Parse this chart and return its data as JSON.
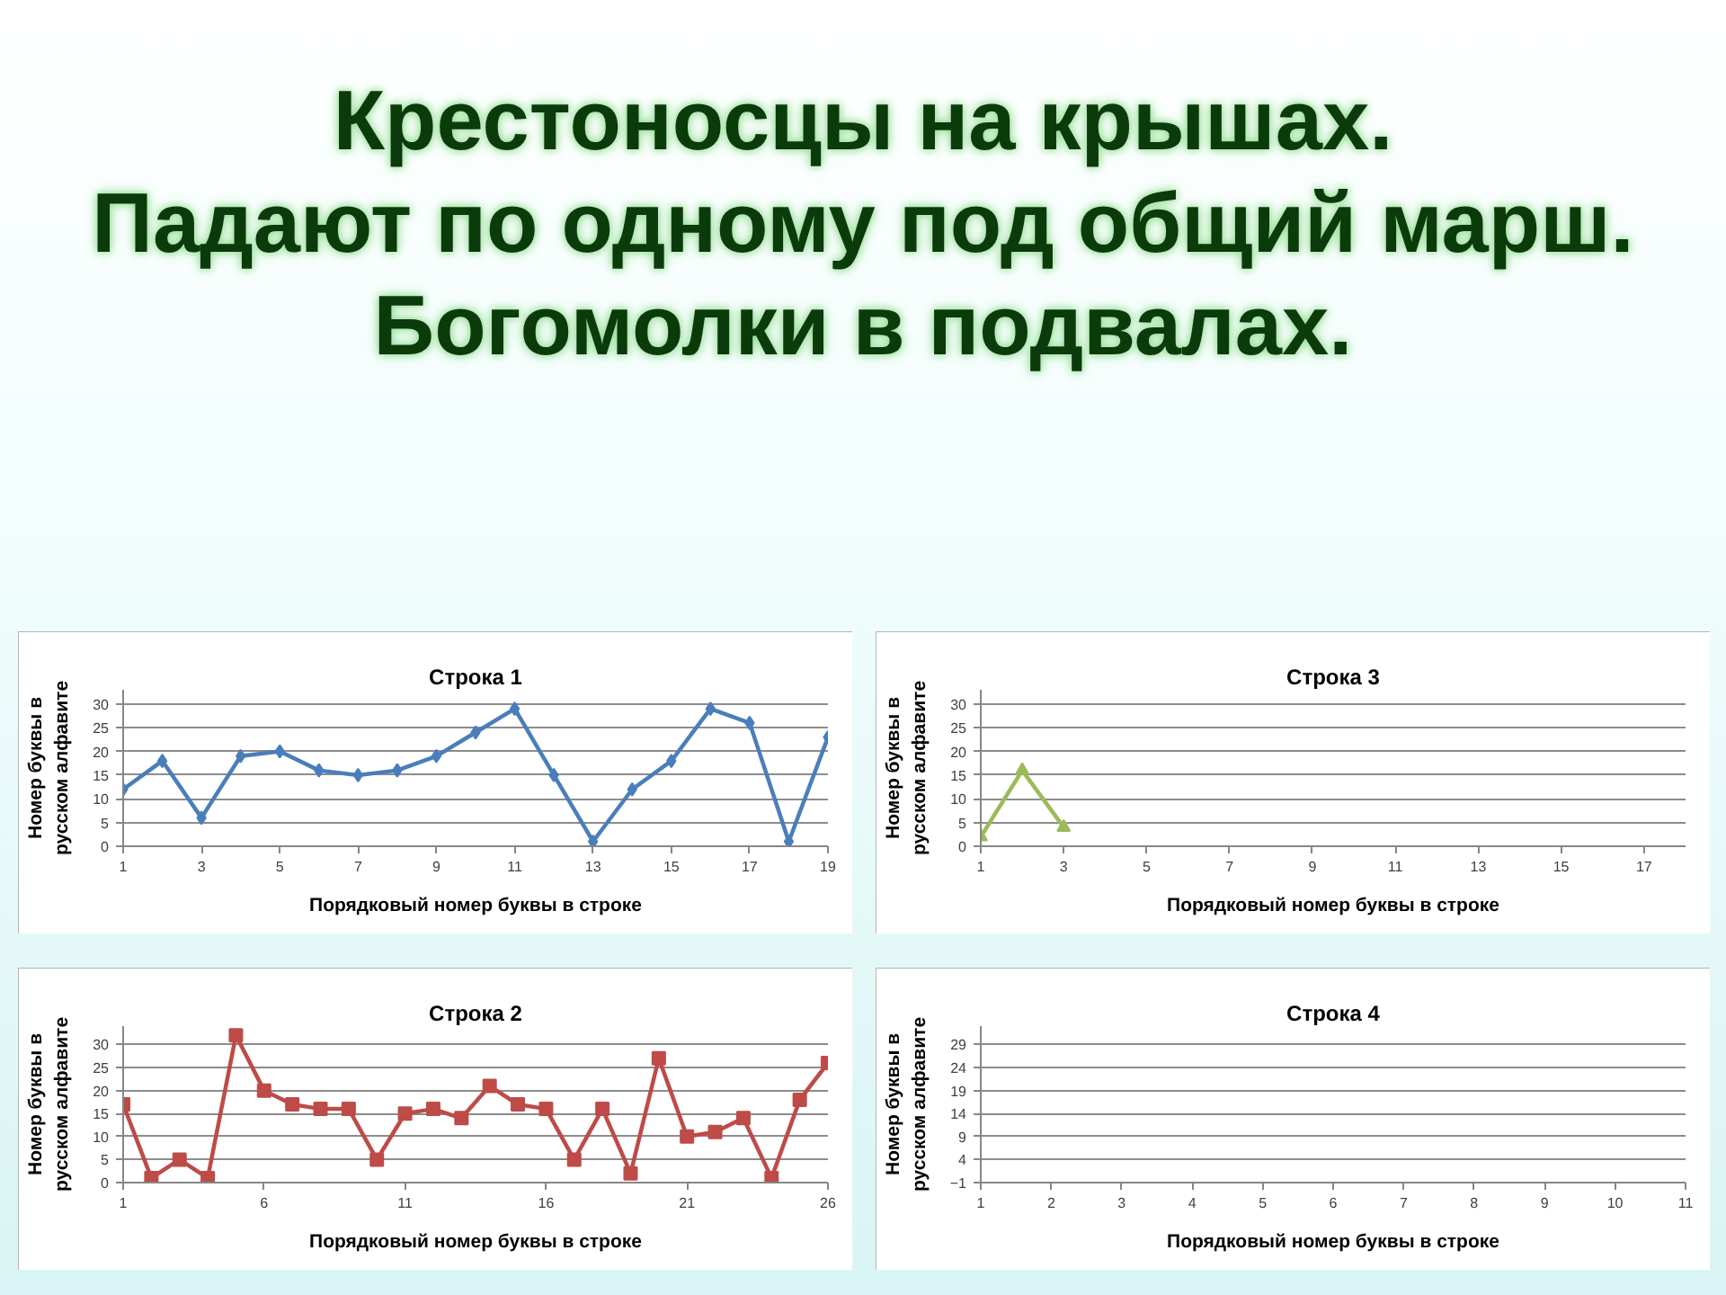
{
  "chart_data": [
    {
      "type": "other",
      "title": "Крестоносцы на крышах.\nПадают по одному под общий марш.\nБогомолки в подвалах."
    },
    {
      "type": "line",
      "title": "Строка 1",
      "xlabel": "Порядковый номер буквы в строке",
      "ylabel": "Номер буквы в\nрусском алфавите",
      "x": [
        1,
        2,
        3,
        4,
        5,
        6,
        7,
        8,
        9,
        10,
        11,
        12,
        13,
        14,
        15,
        16,
        17,
        18,
        19
      ],
      "values": [
        12,
        18,
        6,
        19,
        20,
        16,
        15,
        16,
        19,
        24,
        29,
        15,
        1,
        12,
        18,
        29,
        26,
        1,
        23
      ],
      "color": "#4a7ebb",
      "marker": "diamond",
      "xlim": [
        1,
        19
      ],
      "xticks": [
        1,
        3,
        5,
        7,
        9,
        11,
        13,
        15,
        17,
        19
      ],
      "ylim": [
        0,
        33
      ],
      "yticks": [
        0,
        5,
        10,
        15,
        20,
        25,
        30
      ],
      "grid": "y"
    },
    {
      "type": "line",
      "title": "Строка 3",
      "xlabel": "Порядковый номер буквы в строке",
      "ylabel": "Номер буквы в\nрусском алфавите",
      "x": [
        1,
        2,
        3
      ],
      "values": [
        2,
        16,
        4
      ],
      "color": "#9bbb59",
      "marker": "triangle",
      "xlim": [
        1,
        18
      ],
      "xticks": [
        1,
        3,
        5,
        7,
        9,
        11,
        13,
        15,
        17
      ],
      "ylim": [
        0,
        33
      ],
      "yticks": [
        0,
        5,
        10,
        15,
        20,
        25,
        30
      ],
      "grid": "y"
    },
    {
      "type": "line",
      "title": "Строка 2",
      "xlabel": "Порядковый номер буквы в строке",
      "ylabel": "Номер буквы в\nрусском алфавите",
      "x": [
        1,
        2,
        3,
        4,
        5,
        6,
        7,
        8,
        9,
        10,
        11,
        12,
        13,
        14,
        15,
        16,
        17,
        18,
        19,
        20,
        21,
        22,
        23,
        24,
        25,
        26
      ],
      "values": [
        17,
        1,
        5,
        1,
        32,
        20,
        17,
        16,
        16,
        5,
        15,
        16,
        14,
        21,
        17,
        16,
        5,
        16,
        2,
        27,
        10,
        11,
        14,
        1,
        18,
        26
      ],
      "color": "#be4b48",
      "marker": "square",
      "xlim": [
        1,
        26
      ],
      "xticks": [
        1,
        6,
        11,
        16,
        21,
        26
      ],
      "ylim": [
        0,
        34
      ],
      "yticks": [
        0,
        5,
        10,
        15,
        20,
        25,
        30
      ],
      "grid": "y"
    },
    {
      "type": "line",
      "title": "Строка 4",
      "xlabel": "Порядковый номер буквы в строке",
      "ylabel": "Номер буквы в\nрусском алфавите",
      "xlim": [
        1,
        11
      ],
      "xticks": [
        1,
        2,
        3,
        4,
        5,
        6,
        7,
        8,
        9,
        10,
        11
      ],
      "ylim": [
        -1,
        33
      ],
      "yticks": [
        -1,
        4,
        9,
        14,
        19,
        24,
        29
      ],
      "grid": "y"
    }
  ]
}
